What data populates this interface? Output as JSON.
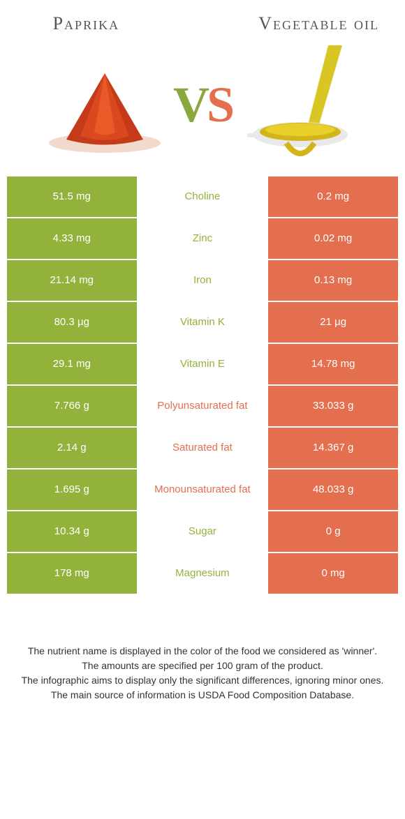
{
  "colors": {
    "left": "#93b23b",
    "right": "#e36f4e",
    "left_text_in_mid": "#93b23b",
    "right_text_in_mid": "#e36f4e"
  },
  "left_food": {
    "title": "Paprika"
  },
  "right_food": {
    "title": "Vegetable oil"
  },
  "vs": {
    "v": "V",
    "s": "S"
  },
  "rows": [
    {
      "nutrient": "Choline",
      "left": "51.5 mg",
      "right": "0.2 mg",
      "winner": "left"
    },
    {
      "nutrient": "Zinc",
      "left": "4.33 mg",
      "right": "0.02 mg",
      "winner": "left"
    },
    {
      "nutrient": "Iron",
      "left": "21.14 mg",
      "right": "0.13 mg",
      "winner": "left"
    },
    {
      "nutrient": "Vitamin K",
      "left": "80.3 µg",
      "right": "21 µg",
      "winner": "left"
    },
    {
      "nutrient": "Vitamin E",
      "left": "29.1 mg",
      "right": "14.78 mg",
      "winner": "left"
    },
    {
      "nutrient": "Polyunsaturated fat",
      "left": "7.766 g",
      "right": "33.033 g",
      "winner": "right"
    },
    {
      "nutrient": "Saturated fat",
      "left": "2.14 g",
      "right": "14.367 g",
      "winner": "right"
    },
    {
      "nutrient": "Monounsaturated fat",
      "left": "1.695 g",
      "right": "48.033 g",
      "winner": "right"
    },
    {
      "nutrient": "Sugar",
      "left": "10.34 g",
      "right": "0 g",
      "winner": "left"
    },
    {
      "nutrient": "Magnesium",
      "left": "178 mg",
      "right": "0 mg",
      "winner": "left"
    }
  ],
  "footnotes": [
    "The nutrient name is displayed in the color of the food we considered as 'winner'.",
    "The amounts are specified per 100 gram of the product.",
    "The infographic aims to display only the significant differences, ignoring minor ones.",
    "The main source of information is USDA Food Composition Database."
  ]
}
